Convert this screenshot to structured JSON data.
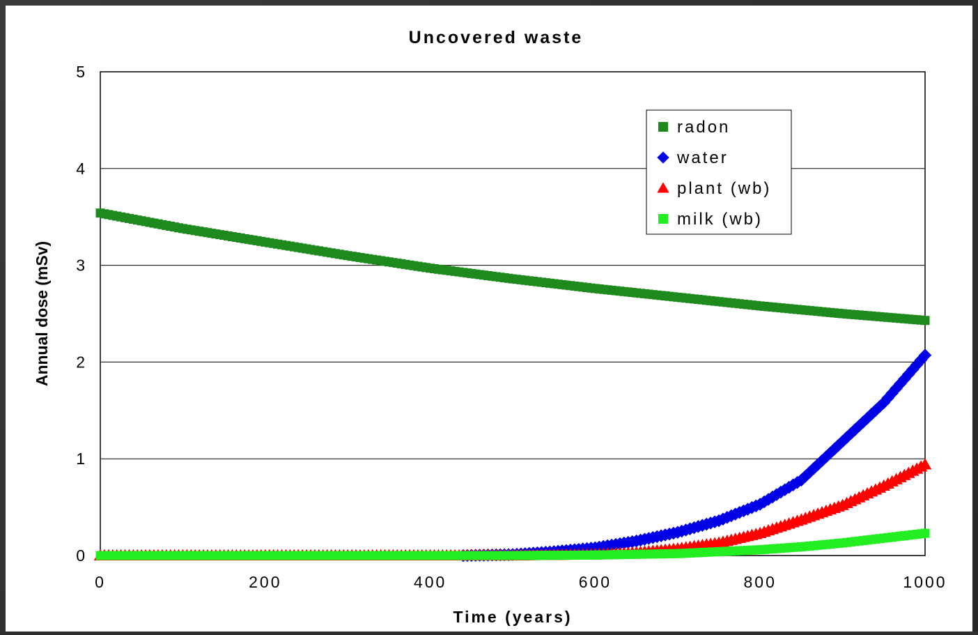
{
  "chart_data": {
    "type": "scatter",
    "title": "Uncovered waste",
    "xlabel": "Time (years)",
    "ylabel": "Annual dose (mSv)",
    "xlim": [
      0,
      1000
    ],
    "ylim": [
      0,
      5
    ],
    "xticks": [
      "0",
      "200",
      "400",
      "600",
      "800",
      "1000"
    ],
    "yticks": [
      "0",
      "1",
      "2",
      "3",
      "4",
      "5"
    ],
    "grid": "horizontal",
    "legend_position": "top-right",
    "series": [
      {
        "name": "radon",
        "marker": "square",
        "color": "#1e8a1e",
        "points": [
          [
            0,
            3.54
          ],
          [
            100,
            3.38
          ],
          [
            200,
            3.24
          ],
          [
            300,
            3.1
          ],
          [
            400,
            2.97
          ],
          [
            500,
            2.86
          ],
          [
            600,
            2.76
          ],
          [
            700,
            2.67
          ],
          [
            800,
            2.58
          ],
          [
            900,
            2.5
          ],
          [
            1000,
            2.43
          ]
        ]
      },
      {
        "name": "water",
        "marker": "diamond",
        "color": "#0000e6",
        "points": [
          [
            440,
            0.0
          ],
          [
            500,
            0.01
          ],
          [
            550,
            0.04
          ],
          [
            600,
            0.08
          ],
          [
            650,
            0.15
          ],
          [
            700,
            0.24
          ],
          [
            750,
            0.36
          ],
          [
            800,
            0.53
          ],
          [
            850,
            0.78
          ],
          [
            900,
            1.18
          ],
          [
            950,
            1.58
          ],
          [
            1000,
            2.07
          ]
        ]
      },
      {
        "name": "plant (wb)",
        "marker": "triangle",
        "color": "#ff0000",
        "points": [
          [
            0,
            0.0
          ],
          [
            500,
            0.0
          ],
          [
            600,
            0.01
          ],
          [
            650,
            0.03
          ],
          [
            700,
            0.07
          ],
          [
            750,
            0.13
          ],
          [
            800,
            0.23
          ],
          [
            850,
            0.37
          ],
          [
            900,
            0.52
          ],
          [
            950,
            0.72
          ],
          [
            1000,
            0.94
          ]
        ]
      },
      {
        "name": "milk (wb)",
        "marker": "square",
        "color": "#22ee22",
        "points": [
          [
            0,
            0.0
          ],
          [
            500,
            0.0
          ],
          [
            600,
            0.005
          ],
          [
            700,
            0.02
          ],
          [
            750,
            0.04
          ],
          [
            800,
            0.06
          ],
          [
            850,
            0.09
          ],
          [
            900,
            0.13
          ],
          [
            950,
            0.18
          ],
          [
            1000,
            0.23
          ]
        ]
      }
    ]
  }
}
